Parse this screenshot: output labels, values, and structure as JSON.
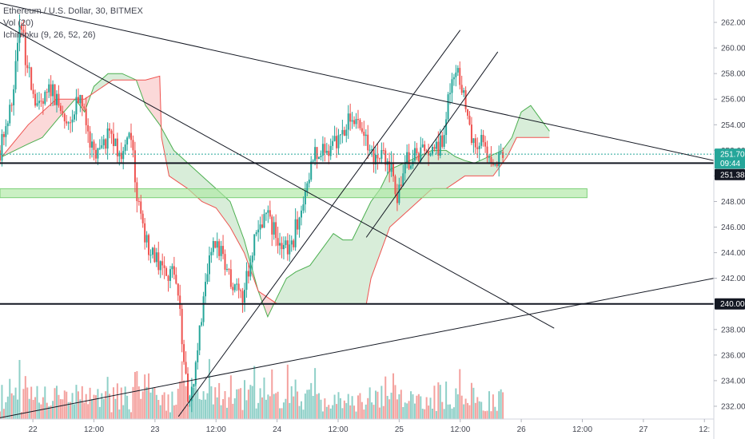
{
  "legend": {
    "symbol": "Ethereum / U.S. Dollar, 30, BITMEX",
    "volume": "Vol (20)",
    "ichimoku": "Ichimoku (9, 26, 52, 26)"
  },
  "price_axis": {
    "ticks": [
      "262.00",
      "260.00",
      "258.00",
      "256.00",
      "254.00",
      "252.00",
      "250.00",
      "248.00",
      "246.00",
      "244.00",
      "242.00",
      "240.00",
      "238.00",
      "236.00",
      "234.00",
      "232.00"
    ],
    "labels": [
      {
        "text": "251.70",
        "value": 251.7,
        "color": "#26a69a"
      },
      {
        "text": "09:44",
        "value": 251.0,
        "color": "#26a69a"
      },
      {
        "text": "251.38",
        "value": 250.1,
        "color": "#131722"
      },
      {
        "text": "240.00",
        "value": 240.0,
        "color": "#131722"
      }
    ]
  },
  "time_axis": {
    "ticks": [
      {
        "text": "22",
        "t": 0.35
      },
      {
        "text": "12:00",
        "t": 1.0
      },
      {
        "text": "23",
        "t": 1.65
      },
      {
        "text": "12:00",
        "t": 2.3
      },
      {
        "text": "24",
        "t": 2.95
      },
      {
        "text": "12:00",
        "t": 3.6
      },
      {
        "text": "25",
        "t": 4.25
      },
      {
        "text": "12:00",
        "t": 4.9
      },
      {
        "text": "26",
        "t": 5.55
      },
      {
        "text": "12:00",
        "t": 6.2
      },
      {
        "text": "27",
        "t": 6.85
      },
      {
        "text": "12:",
        "t": 7.5
      }
    ]
  },
  "chart_data": {
    "type": "candlestick",
    "title": "Ethereum / U.S. Dollar, 30, BITMEX",
    "ylim": [
      231,
      263.5
    ],
    "xlim": [
      0,
      7.6
    ],
    "colors": {
      "up": "#26a69a",
      "down": "#ef5350",
      "up_volume": "#8fd0c8",
      "down_volume": "#f4a19e"
    },
    "anchors": [
      [
        0.0,
        252
      ],
      [
        0.12,
        256
      ],
      [
        0.22,
        262
      ],
      [
        0.3,
        258
      ],
      [
        0.42,
        255
      ],
      [
        0.55,
        257
      ],
      [
        0.7,
        254
      ],
      [
        0.85,
        256
      ],
      [
        0.95,
        253
      ],
      [
        1.05,
        251.5
      ],
      [
        1.15,
        253
      ],
      [
        1.3,
        252
      ],
      [
        1.4,
        253.5
      ],
      [
        1.45,
        249
      ],
      [
        1.52,
        246
      ],
      [
        1.6,
        244
      ],
      [
        1.75,
        243
      ],
      [
        1.85,
        242
      ],
      [
        1.92,
        239
      ],
      [
        1.98,
        234
      ],
      [
        2.02,
        232
      ],
      [
        2.08,
        235
      ],
      [
        2.15,
        239
      ],
      [
        2.22,
        243
      ],
      [
        2.3,
        245
      ],
      [
        2.4,
        243
      ],
      [
        2.5,
        241
      ],
      [
        2.58,
        240.5
      ],
      [
        2.65,
        243
      ],
      [
        2.75,
        246
      ],
      [
        2.85,
        247
      ],
      [
        2.95,
        245
      ],
      [
        3.05,
        244.5
      ],
      [
        3.12,
        245
      ],
      [
        3.18,
        247
      ],
      [
        3.25,
        249
      ],
      [
        3.35,
        251.5
      ],
      [
        3.45,
        252
      ],
      [
        3.55,
        252.5
      ],
      [
        3.65,
        253.5
      ],
      [
        3.72,
        255
      ],
      [
        3.8,
        254
      ],
      [
        3.9,
        252.5
      ],
      [
        4.0,
        251
      ],
      [
        4.1,
        251.5
      ],
      [
        4.18,
        250
      ],
      [
        4.22,
        248
      ],
      [
        4.26,
        249.5
      ],
      [
        4.32,
        251
      ],
      [
        4.42,
        252
      ],
      [
        4.55,
        251.5
      ],
      [
        4.65,
        252
      ],
      [
        4.72,
        253
      ],
      [
        4.78,
        257
      ],
      [
        4.85,
        258
      ],
      [
        4.92,
        257
      ],
      [
        4.98,
        254
      ],
      [
        5.05,
        252
      ],
      [
        5.12,
        253
      ],
      [
        5.2,
        251.5
      ],
      [
        5.3,
        251
      ],
      [
        5.37,
        251.6
      ]
    ],
    "ichimoku": {
      "span_a": [
        [
          0.02,
          251.5
        ],
        [
          0.3,
          252.5
        ],
        [
          0.45,
          253
        ],
        [
          0.62,
          254.5
        ],
        [
          0.8,
          256
        ],
        [
          0.9,
          255
        ],
        [
          1.0,
          257
        ],
        [
          1.15,
          258
        ],
        [
          1.3,
          258
        ],
        [
          1.45,
          257.5
        ],
        [
          1.55,
          255.5
        ],
        [
          1.7,
          254
        ],
        [
          1.85,
          252
        ],
        [
          2.0,
          251
        ],
        [
          2.15,
          250
        ],
        [
          2.3,
          249
        ],
        [
          2.45,
          248
        ],
        [
          2.6,
          245
        ],
        [
          2.75,
          241
        ],
        [
          2.85,
          239
        ],
        [
          2.95,
          240.5
        ],
        [
          3.05,
          242
        ],
        [
          3.15,
          242.5
        ],
        [
          3.3,
          243
        ],
        [
          3.45,
          244.5
        ],
        [
          3.55,
          245.5
        ],
        [
          3.65,
          245
        ],
        [
          3.75,
          245
        ],
        [
          3.85,
          246.5
        ],
        [
          3.95,
          248
        ],
        [
          4.05,
          249
        ],
        [
          4.15,
          250.5
        ],
        [
          4.3,
          251
        ],
        [
          4.45,
          251.5
        ],
        [
          4.6,
          252
        ],
        [
          4.75,
          252
        ],
        [
          4.85,
          251.5
        ],
        [
          4.95,
          251.2
        ],
        [
          5.05,
          251
        ],
        [
          5.2,
          251.5
        ],
        [
          5.35,
          252
        ],
        [
          5.45,
          253
        ],
        [
          5.55,
          255
        ],
        [
          5.65,
          255.5
        ],
        [
          5.75,
          254.5
        ],
        [
          5.85,
          253.5
        ]
      ],
      "span_b": [
        [
          0.02,
          251.5
        ],
        [
          0.3,
          254
        ],
        [
          0.6,
          256
        ],
        [
          0.9,
          256
        ],
        [
          1.2,
          257.5
        ],
        [
          1.45,
          257.5
        ],
        [
          1.55,
          257.5
        ],
        [
          1.7,
          257.8
        ],
        [
          1.72,
          253
        ],
        [
          1.8,
          250
        ],
        [
          2.0,
          249
        ],
        [
          2.15,
          248
        ],
        [
          2.3,
          247.5
        ],
        [
          2.45,
          246
        ],
        [
          2.6,
          244
        ],
        [
          2.75,
          241
        ],
        [
          2.95,
          240
        ],
        [
          3.2,
          240
        ],
        [
          3.45,
          240
        ],
        [
          3.6,
          240
        ],
        [
          3.75,
          240
        ],
        [
          3.9,
          240
        ],
        [
          3.95,
          242
        ],
        [
          4.05,
          244
        ],
        [
          4.15,
          246
        ],
        [
          4.3,
          247
        ],
        [
          4.45,
          248
        ],
        [
          4.6,
          249
        ],
        [
          4.75,
          249
        ],
        [
          4.85,
          249.5
        ],
        [
          4.95,
          250
        ],
        [
          5.1,
          250
        ],
        [
          5.25,
          250
        ],
        [
          5.4,
          251.5
        ],
        [
          5.5,
          253
        ],
        [
          5.85,
          253
        ]
      ]
    },
    "trendlines": [
      {
        "x1": 0.0,
        "y1": 263.5,
        "x2": 7.6,
        "y2": 251.2
      },
      {
        "x1": 0.0,
        "y1": 262.0,
        "x2": 5.9,
        "y2": 238.1
      },
      {
        "x1": 1.9,
        "y1": 231.2,
        "x2": 4.9,
        "y2": 261.4
      },
      {
        "x1": 3.9,
        "y1": 245.2,
        "x2": 5.3,
        "y2": 259.7
      },
      {
        "x1": 0.0,
        "y1": 231.1,
        "x2": 7.6,
        "y2": 242.0
      }
    ],
    "horizontal_lines": [
      {
        "y": 251.0,
        "color": "#131722",
        "width": 2
      },
      {
        "y": 240.0,
        "color": "#131722",
        "width": 2
      },
      {
        "y": 251.7,
        "color": "#26a69a",
        "width": 1,
        "dash": "2,2"
      }
    ],
    "zones": [
      {
        "x1": 0.0,
        "x2": 6.25,
        "y1": 248.3,
        "y2": 249.0,
        "color": "#aee8a3"
      }
    ]
  }
}
